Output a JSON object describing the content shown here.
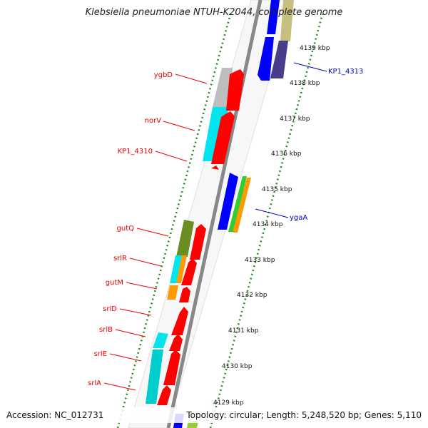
{
  "title": "Klebsiella pneumoniae NTUH-K2044, complete genome",
  "footer": {
    "accession": "Accession: NC_012731",
    "summary": "Topology: circular; Length: 5,248,520 bp; Genes: 5,110"
  },
  "colors": {
    "red": "#ff0000",
    "blue": "#0000ff",
    "cyan": "#00e5ee",
    "green": "#32cd32",
    "orange": "#ff9900",
    "olive": "#6b8e23",
    "khaki": "#c7bf7f",
    "slateblue": "#483d8b",
    "gray": "#bebebe",
    "backbone": "#808080",
    "ruler": "#228b22",
    "label_red": "#ee0000",
    "label_blue": "#0000cc"
  },
  "kbp_ticks": [
    "4139 kbp",
    "4138 kbp",
    "4137 kbp",
    "4136 kbp",
    "4135 kbp",
    "4134 kbp",
    "4133 kbp",
    "4132 kbp",
    "4131 kbp",
    "4130 kbp",
    "4129 kbp"
  ],
  "gene_labels": [
    {
      "text": "ygbD",
      "side": "left"
    },
    {
      "text": "norV",
      "side": "left"
    },
    {
      "text": "KP1_4310",
      "side": "left"
    },
    {
      "text": "gutQ",
      "side": "left"
    },
    {
      "text": "srlR",
      "side": "left"
    },
    {
      "text": "gutM",
      "side": "left"
    },
    {
      "text": "srlD",
      "side": "left"
    },
    {
      "text": "srlB",
      "side": "left"
    },
    {
      "text": "srlE",
      "side": "left"
    },
    {
      "text": "srlA",
      "side": "left"
    },
    {
      "text": "KP1_4313",
      "side": "right"
    },
    {
      "text": "ygaA",
      "side": "right"
    }
  ]
}
